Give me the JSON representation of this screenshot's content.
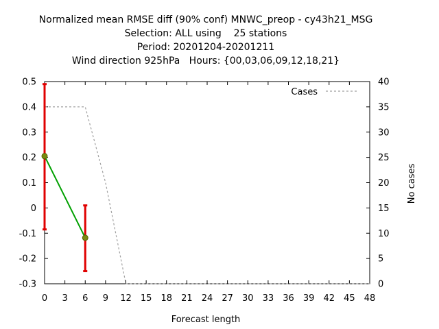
{
  "chart_data": {
    "type": "line",
    "title_lines": [
      "Normalized mean RMSE diff (90% conf) MNWC_preop - cy43h21_MSG",
      "Selection: ALL using    25 stations",
      "Period: 20201204-20201211",
      "Wind direction 925hPa   Hours: {00,03,06,09,12,18,21}"
    ],
    "xlabel": "Forecast length",
    "ylabel_right": "No cases",
    "xlim": [
      0,
      48
    ],
    "x_ticks": [
      0,
      3,
      6,
      9,
      12,
      15,
      18,
      21,
      24,
      27,
      30,
      33,
      36,
      39,
      42,
      45,
      48
    ],
    "ylim_left": [
      -0.3,
      0.5
    ],
    "y_ticks_left": [
      -0.3,
      -0.2,
      -0.1,
      0,
      0.1,
      0.2,
      0.3,
      0.4,
      0.5
    ],
    "y_tick_labels_left": [
      "-0.3",
      "-0.2",
      "-0.1",
      "0",
      "0.1",
      "0.2",
      "0.3",
      "0.4",
      "0.5"
    ],
    "ylim_right": [
      0,
      40
    ],
    "y_ticks_right": [
      0,
      5,
      10,
      15,
      20,
      25,
      30,
      35,
      40
    ],
    "series": [
      {
        "type": "line",
        "x": [
          0,
          6
        ],
        "y": [
          0.205,
          -0.118
        ],
        "ci_low": [
          -0.085,
          -0.25
        ],
        "ci_high": [
          0.49,
          0.01
        ],
        "line_color": "#00a000",
        "marker_color": "#7a8a10",
        "errorbar_color": "#e00000"
      },
      {
        "name": "Cases",
        "type": "line",
        "axis": "right",
        "x": [
          0,
          3,
          6,
          9,
          12,
          15,
          18,
          21,
          24,
          27,
          30,
          33,
          36,
          39,
          42,
          45,
          48
        ],
        "y": [
          35,
          35,
          35,
          20,
          0,
          0,
          0,
          0,
          0,
          0,
          0,
          0,
          0,
          0,
          0,
          0,
          0
        ],
        "color": "#a0a0a0",
        "style": "dashed"
      }
    ],
    "legend": {
      "position": "top-right",
      "entries": [
        "Cases"
      ]
    },
    "grid": false
  }
}
